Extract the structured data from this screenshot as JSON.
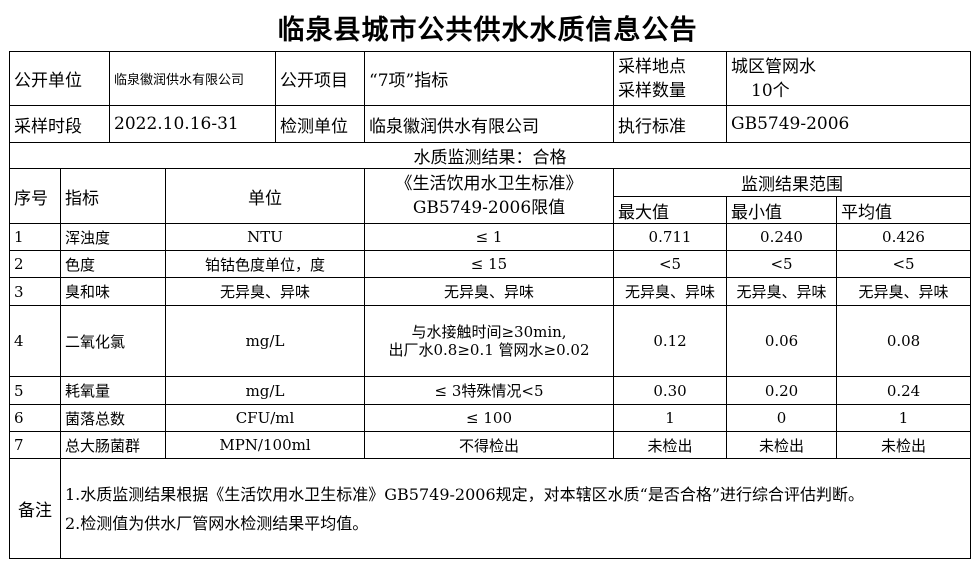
{
  "title": "临泉县城市公共供水水质信息公告",
  "info": {
    "publisher_label": "公开单位",
    "publisher": "临泉徽润供水有限公司",
    "items_label": "公开项目",
    "items": "“7项”指标",
    "location_label": "采样地点",
    "count_label": "采样数量",
    "location": "城区管网水",
    "count": "10个",
    "period_label": "采样时段",
    "period": "2022.10.16-31",
    "tester_label": "检测单位",
    "tester": "临泉徽润供水有限公司",
    "standard_label": "执行标准",
    "standard": "GB5749-2006"
  },
  "result": "水质监测结果：合格",
  "headers": {
    "no": "序号",
    "indicator": "指标",
    "unit": "单位",
    "limit_line1": "《生活饮用水卫生标准》",
    "limit_line2": "GB5749-2006限值",
    "range": "监测结果范围",
    "max": "最大值",
    "min": "最小值",
    "avg": "平均值"
  },
  "rows": [
    {
      "no": "1",
      "indicator": "浑浊度",
      "unit": "NTU",
      "limit": "≤ 1",
      "max": "0.711",
      "min": "0.240",
      "avg": "0.426"
    },
    {
      "no": "2",
      "indicator": "色度",
      "unit": "铂钴色度单位，度",
      "limit": "≤ 15",
      "max": "<5",
      "min": "<5",
      "avg": "<5"
    },
    {
      "no": "3",
      "indicator": "臭和味",
      "unit": "无异臭、异味",
      "limit": "无异臭、异味",
      "max": "无异臭、异味",
      "min": "无异臭、异味",
      "avg": "无异臭、异味"
    },
    {
      "no": "4",
      "indicator": "二氧化氯",
      "unit": "mg/L",
      "limit": "与水接触时间≥30min,",
      "limit2": "出厂水0.8≥0.1 管网水≥0.02",
      "max": "0.12",
      "min": "0.06",
      "avg": "0.08"
    },
    {
      "no": "5",
      "indicator": "耗氧量",
      "unit": "mg/L",
      "limit": "≤ 3特殊情况<5",
      "max": "0.30",
      "min": "0.20",
      "avg": "0.24"
    },
    {
      "no": "6",
      "indicator": "菌落总数",
      "unit": "CFU/ml",
      "limit": "≤ 100",
      "max": "1",
      "min": "0",
      "avg": "1"
    },
    {
      "no": "7",
      "indicator": "总大肠菌群",
      "unit": "MPN/100ml",
      "limit": "不得检出",
      "max": "未检出",
      "min": "未检出",
      "avg": "未检出"
    }
  ],
  "notes": {
    "label": "备注",
    "line1": "1.水质监测结果根据《生活饮用水卫生标准》GB5749-2006规定，对本辖区水质“是否合格”进行综合评估判断。",
    "line2": "2.检测值为供水厂管网水检测结果平均值。"
  }
}
